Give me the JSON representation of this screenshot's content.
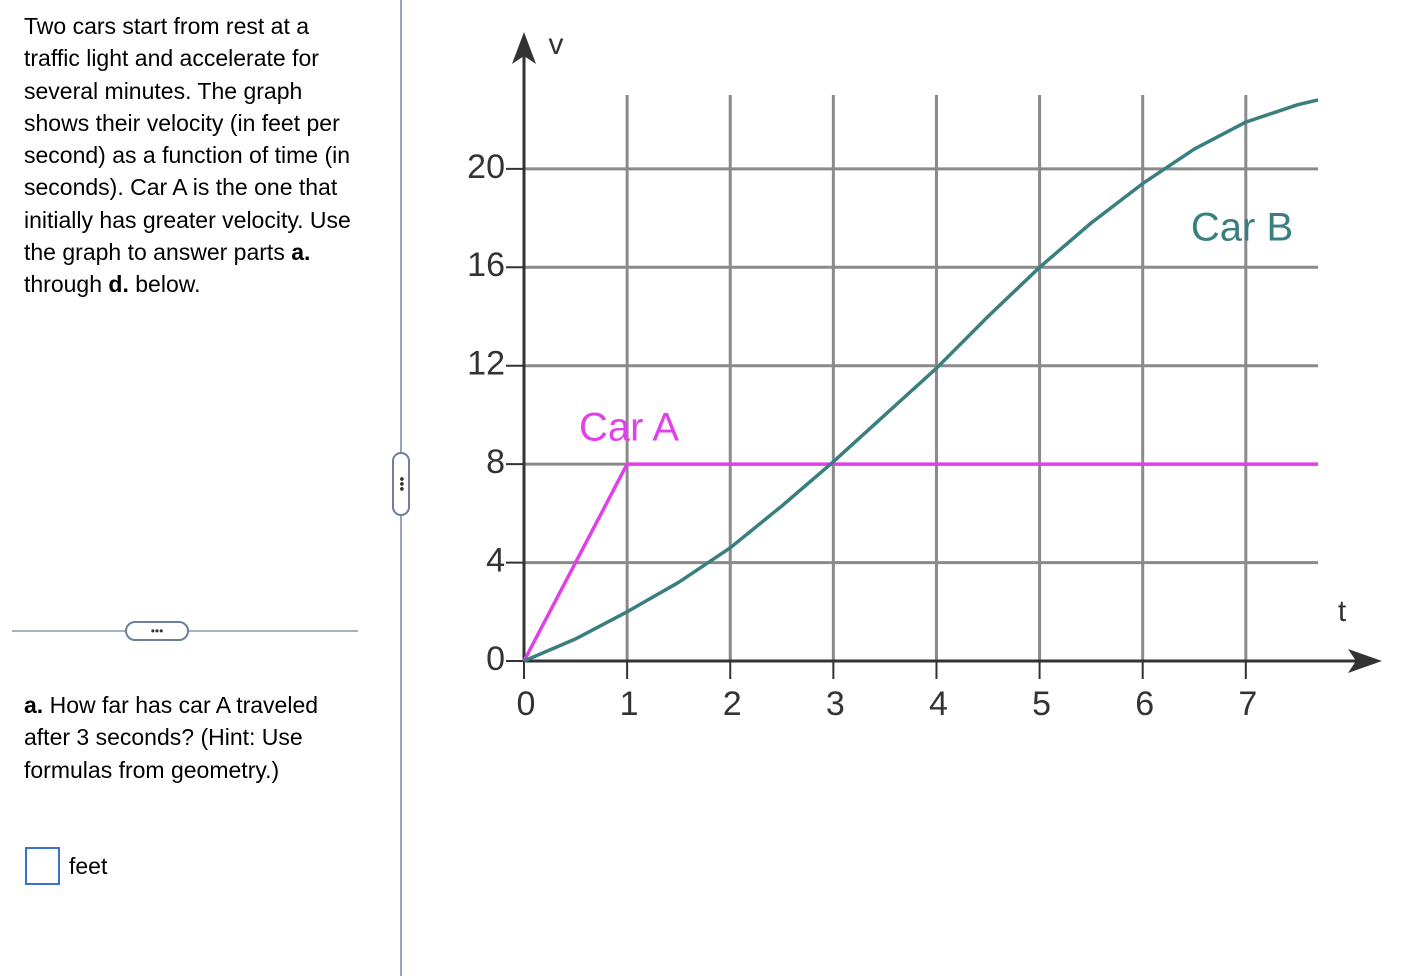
{
  "question": {
    "intro": [
      "Two cars start from rest at a traffic light and accelerate for several minutes. The graph shows their velocity (in feet per second) as a function of time (in seconds). Car A is the one that initially has greater velocity. Use the graph to answer parts ",
      "a.",
      " through ",
      "d.",
      " below."
    ],
    "part_a": [
      "a.",
      " How far has car A traveled after 3 seconds? (Hint: Use formulas from geometry.)"
    ],
    "unit": "feet"
  },
  "chart_data": {
    "type": "line",
    "x_label": "t",
    "y_label": "v",
    "xlim": [
      0,
      7.7
    ],
    "ylim": [
      0,
      23
    ],
    "xticks": [
      0,
      1,
      2,
      3,
      4,
      5,
      6,
      7
    ],
    "yticks": [
      0,
      4,
      8,
      12,
      16,
      20
    ],
    "grid": true,
    "series": [
      {
        "name": "Car A",
        "color": "#e040e8",
        "x": [
          0,
          1,
          7.7
        ],
        "values": [
          0,
          8,
          8
        ]
      },
      {
        "name": "Car B",
        "color": "#3a7f7f",
        "x": [
          0,
          0.5,
          1,
          1.5,
          2,
          2.5,
          3,
          3.5,
          4,
          4.5,
          5,
          5.5,
          6,
          6.5,
          7,
          7.5,
          7.7
        ],
        "values": [
          0,
          0.9,
          2,
          3.2,
          4.6,
          6.3,
          8.1,
          10,
          11.9,
          14,
          16,
          17.8,
          19.4,
          20.8,
          21.9,
          22.6,
          22.8
        ]
      }
    ]
  }
}
